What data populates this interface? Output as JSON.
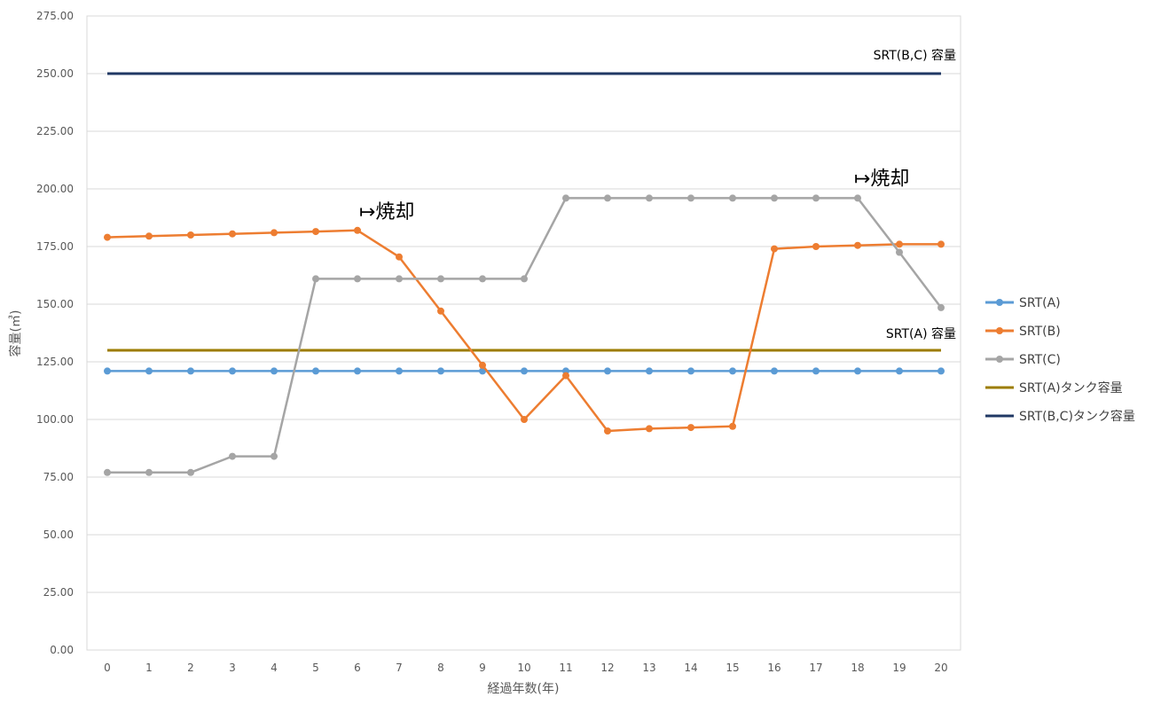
{
  "chart_data": {
    "type": "line",
    "title": "",
    "xlabel": "経過年数(年)",
    "ylabel": "容量(㎥)",
    "x": [
      0,
      1,
      2,
      3,
      4,
      5,
      6,
      7,
      8,
      9,
      10,
      11,
      12,
      13,
      14,
      15,
      16,
      17,
      18,
      19,
      20
    ],
    "ylim": [
      0,
      275
    ],
    "yticks": [
      "0.00",
      "25.00",
      "50.00",
      "75.00",
      "100.00",
      "125.00",
      "150.00",
      "175.00",
      "200.00",
      "225.00",
      "250.00",
      "275.00"
    ],
    "grid": "horizontal",
    "legend_position": "right",
    "series": [
      {
        "name": "SRT(A)",
        "color": "#5B9BD5",
        "marker": true,
        "values": [
          121,
          121,
          121,
          121,
          121,
          121,
          121,
          121,
          121,
          121,
          121,
          121,
          121,
          121,
          121,
          121,
          121,
          121,
          121,
          121,
          121
        ]
      },
      {
        "name": "SRT(B)",
        "color": "#ED7D31",
        "marker": true,
        "values": [
          179,
          179.5,
          180,
          180.5,
          181,
          181.5,
          182,
          170.5,
          147,
          123.5,
          100,
          119,
          95,
          96,
          96.5,
          97,
          174,
          175,
          175.5,
          176,
          176
        ]
      },
      {
        "name": "SRT(C)",
        "color": "#A5A5A5",
        "marker": true,
        "values": [
          77,
          77,
          77,
          84,
          84,
          161,
          161,
          161,
          161,
          161,
          161,
          196,
          196,
          196,
          196,
          196,
          196,
          196,
          196,
          172.5,
          148.5
        ]
      },
      {
        "name": "SRT(A)タンク容量",
        "color": "#9C7C00",
        "marker": false,
        "values": [
          130,
          130,
          130,
          130,
          130,
          130,
          130,
          130,
          130,
          130,
          130,
          130,
          130,
          130,
          130,
          130,
          130,
          130,
          130,
          130,
          130
        ]
      },
      {
        "name": "SRT(B,C)タンク容量",
        "color": "#203864",
        "marker": false,
        "values": [
          250,
          250,
          250,
          250,
          250,
          250,
          250,
          250,
          250,
          250,
          250,
          250,
          250,
          250,
          250,
          250,
          250,
          250,
          250,
          250,
          250
        ]
      }
    ],
    "annotations": [
      {
        "text": "SRT(B,C) 容量",
        "near_x": 20,
        "near_y": 250
      },
      {
        "text": "SRT(A) 容量",
        "near_x": 20,
        "near_y": 130
      },
      {
        "text": "↦焼却",
        "near_x": 6,
        "near_y": 182
      },
      {
        "text": "↦焼却",
        "near_x": 18,
        "near_y": 196
      }
    ]
  }
}
